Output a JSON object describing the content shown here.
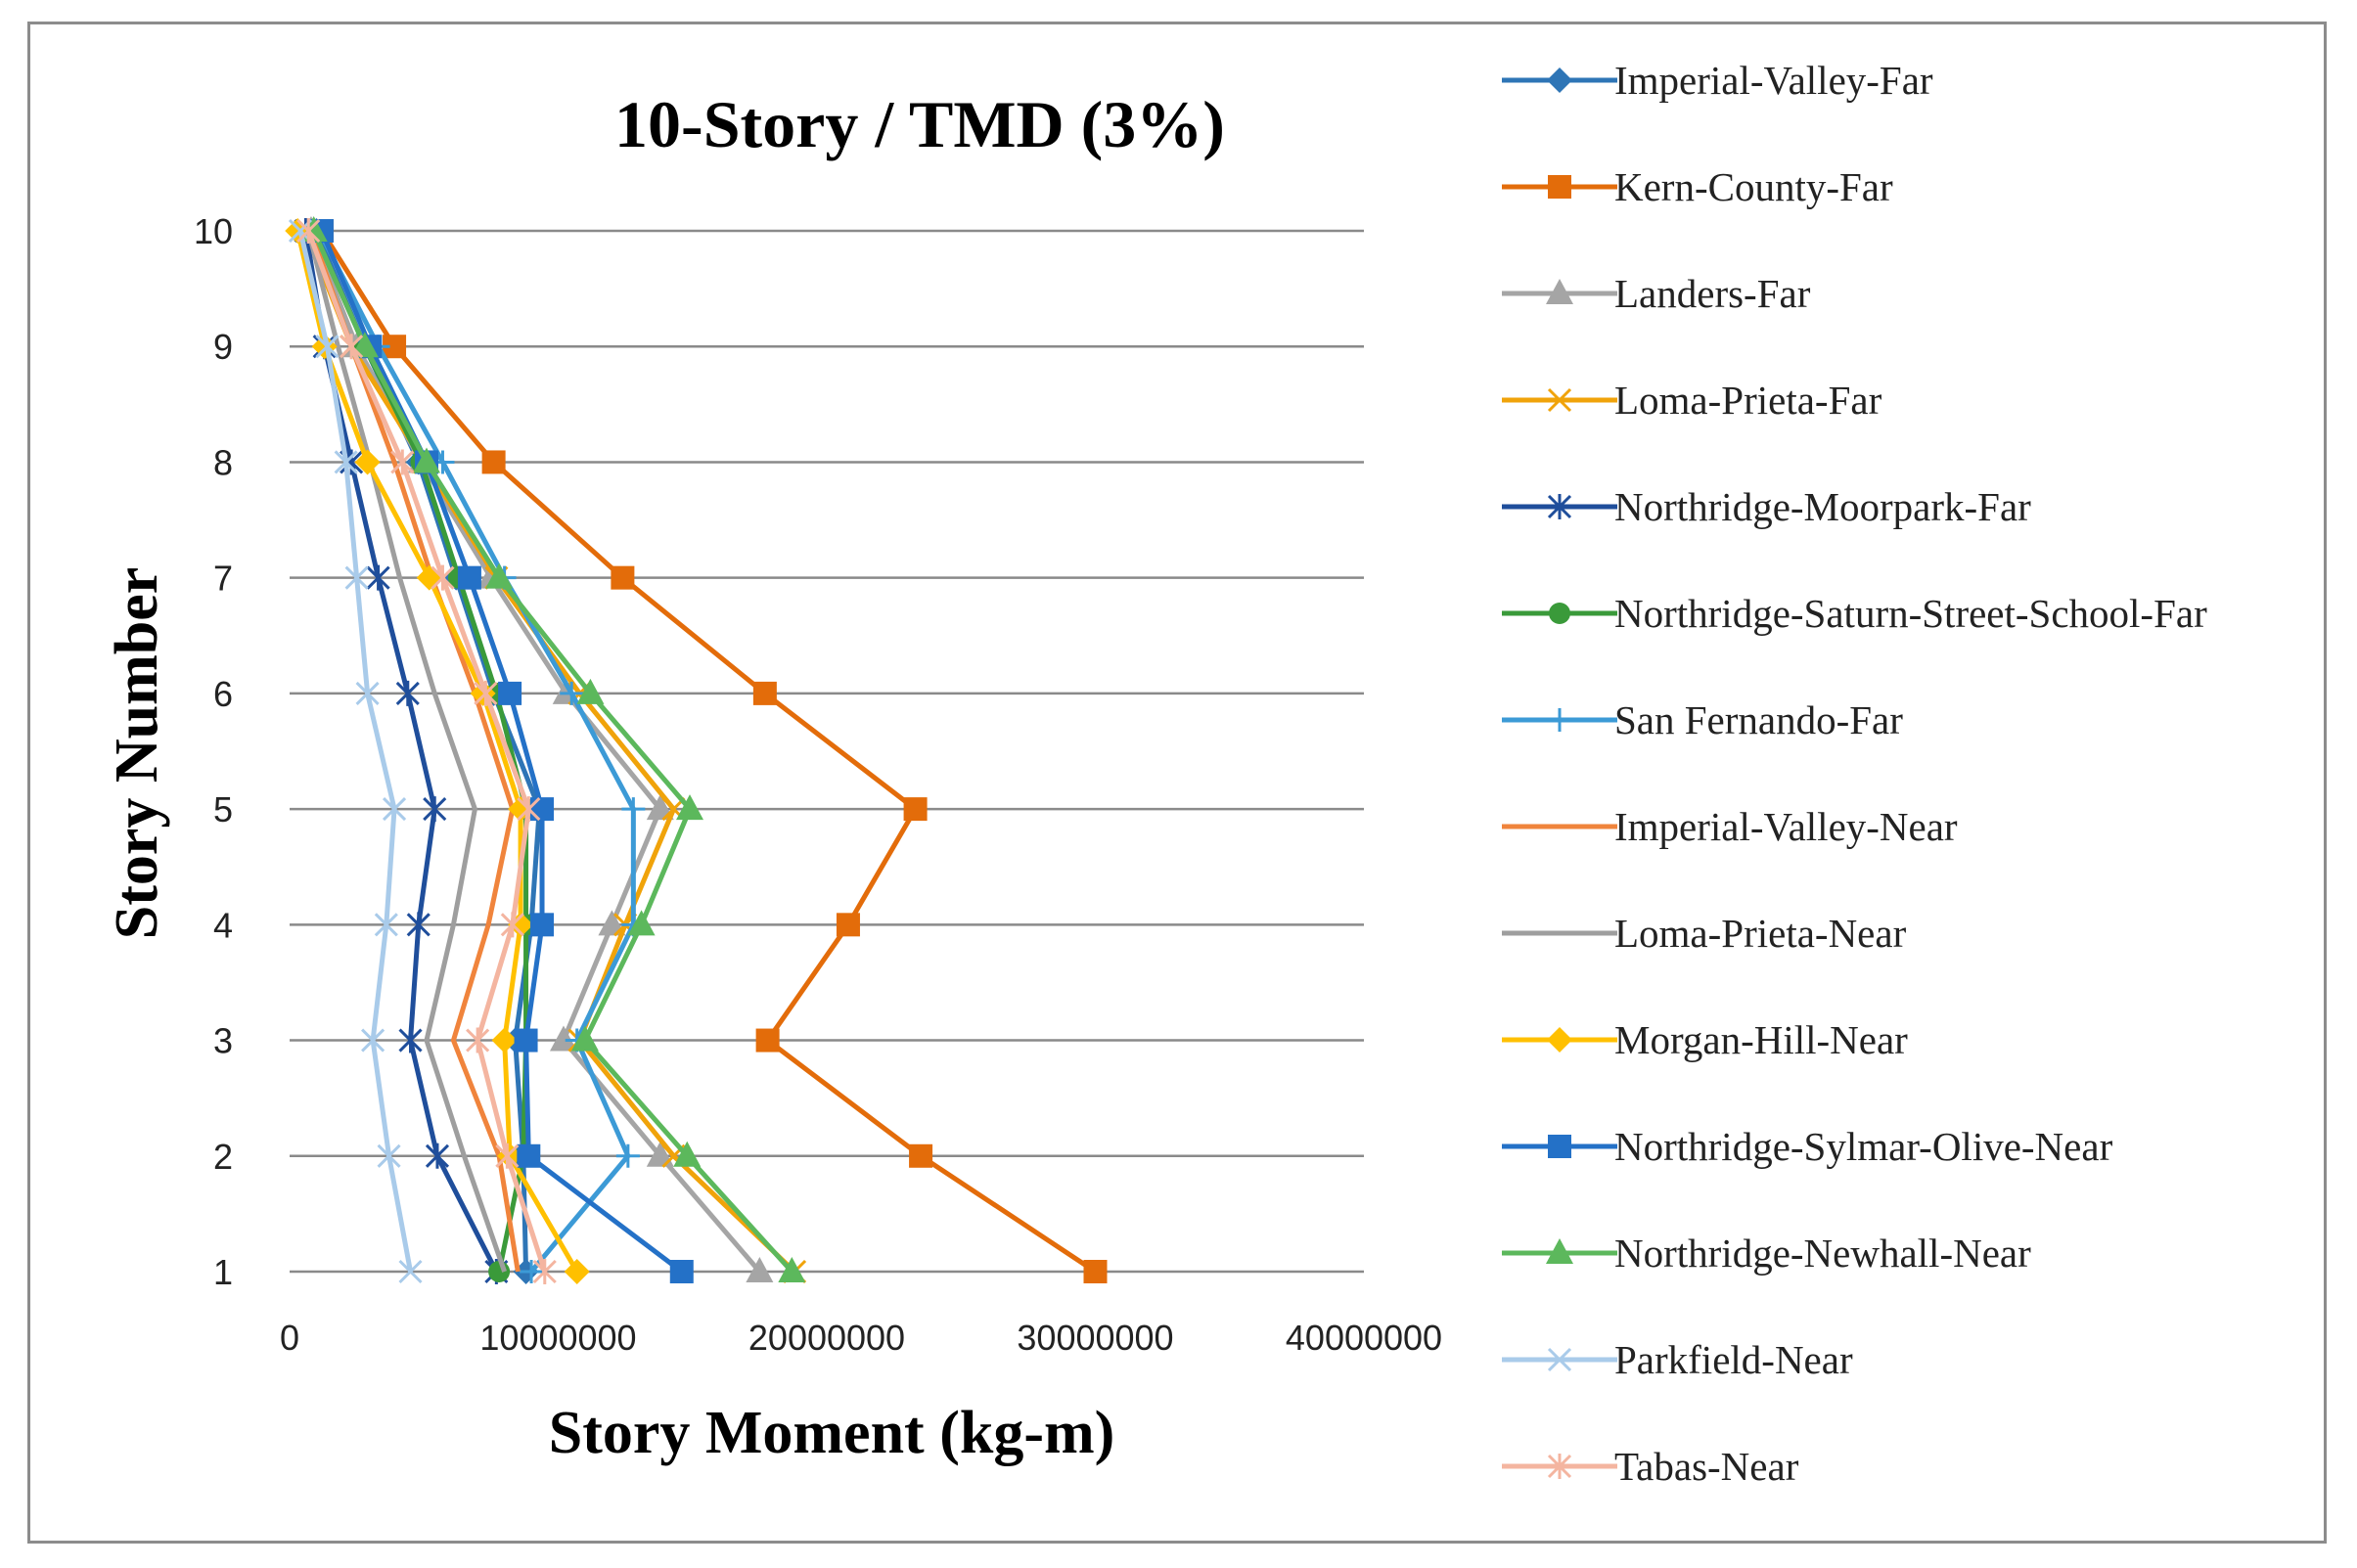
{
  "chart_data": {
    "type": "line",
    "title": "10-Story / TMD  (3%)",
    "xlabel": "Story Moment (kg-m)",
    "ylabel": "Story Number",
    "xlim": [
      0,
      40000000
    ],
    "ylim": [
      1,
      10
    ],
    "x_ticks": [
      "0",
      "10000000",
      "20000000",
      "30000000",
      "40000000"
    ],
    "y_ticks": [
      "1",
      "2",
      "3",
      "4",
      "5",
      "6",
      "7",
      "8",
      "9",
      "10"
    ],
    "stories": [
      1,
      2,
      3,
      4,
      5,
      6,
      7,
      8,
      9,
      10
    ],
    "grid": "horizontal",
    "legend_position": "right",
    "series": [
      {
        "name": "Imperial-Valley-Far",
        "color": "#2E75B6",
        "marker": "diamond",
        "values": [
          8800000,
          8700000,
          8400000,
          9000000,
          9300000,
          7600000,
          6200000,
          4800000,
          2800000,
          1000000
        ]
      },
      {
        "name": "Kern-County-Far",
        "color": "#E36C0A",
        "marker": "square",
        "values": [
          30000000,
          23500000,
          17800000,
          20800000,
          23300000,
          17700000,
          12400000,
          7600000,
          3900000,
          1200000
        ]
      },
      {
        "name": "Landers-Far",
        "color": "#A5A5A5",
        "marker": "triangle",
        "values": [
          17500000,
          13800000,
          10200000,
          12000000,
          13800000,
          10300000,
          7500000,
          4900000,
          2500000,
          800000
        ]
      },
      {
        "name": "Loma-Prieta-Far",
        "color": "#F0A30A",
        "marker": "x",
        "values": [
          18800000,
          14300000,
          10800000,
          12500000,
          14300000,
          10800000,
          7700000,
          5000000,
          2300000,
          600000
        ]
      },
      {
        "name": "Northridge-Moorpark-Far",
        "color": "#1F4E9B",
        "marker": "star",
        "values": [
          7700000,
          5500000,
          4500000,
          4800000,
          5400000,
          4400000,
          3300000,
          2300000,
          1300000,
          600000
        ]
      },
      {
        "name": "Northridge-Saturn-Street-School-Far",
        "color": "#3A9A3A",
        "marker": "circle",
        "values": [
          7800000,
          8700000,
          8800000,
          8800000,
          8800000,
          7700000,
          6300000,
          4900000,
          2800000,
          900000
        ]
      },
      {
        "name": "San Fernando-Far",
        "color": "#3C9AD6",
        "marker": "plus",
        "values": [
          9000000,
          12600000,
          10700000,
          12800000,
          12800000,
          10500000,
          8000000,
          5700000,
          3300000,
          1100000
        ]
      },
      {
        "name": "Imperial-Valley-Near",
        "color": "#F0843C",
        "marker": "none",
        "values": [
          8500000,
          7800000,
          6100000,
          7400000,
          8300000,
          6900000,
          5300000,
          3900000,
          2300000,
          800000
        ]
      },
      {
        "name": "Loma-Prieta-Near",
        "color": "#9E9E9E",
        "marker": "none",
        "values": [
          8000000,
          6500000,
          5100000,
          6100000,
          6900000,
          5400000,
          4100000,
          3000000,
          1800000,
          700000
        ]
      },
      {
        "name": "Morgan-Hill-Near",
        "color": "#FFC000",
        "marker": "diamond",
        "values": [
          10700000,
          8200000,
          8000000,
          8600000,
          8600000,
          7200000,
          5200000,
          2900000,
          1300000,
          300000
        ]
      },
      {
        "name": "Northridge-Sylmar-Olive-Near",
        "color": "#2471C7",
        "marker": "square",
        "values": [
          14600000,
          8900000,
          8800000,
          9400000,
          9400000,
          8200000,
          6700000,
          5100000,
          3000000,
          1200000
        ]
      },
      {
        "name": "Northridge-Newhall-Near",
        "color": "#5CB85C",
        "marker": "triangle",
        "values": [
          18700000,
          14800000,
          11000000,
          13100000,
          14900000,
          11200000,
          7800000,
          5100000,
          2800000,
          900000
        ]
      },
      {
        "name": "Parkfield-Near",
        "color": "#A9CBEA",
        "marker": "x",
        "values": [
          4500000,
          3700000,
          3100000,
          3600000,
          3900000,
          2900000,
          2500000,
          2100000,
          1400000,
          400000
        ]
      },
      {
        "name": "Tabas-Near",
        "color": "#F4B5A0",
        "marker": "star",
        "values": [
          9500000,
          8100000,
          7000000,
          8300000,
          8900000,
          7300000,
          5700000,
          4200000,
          2300000,
          700000
        ]
      }
    ]
  }
}
